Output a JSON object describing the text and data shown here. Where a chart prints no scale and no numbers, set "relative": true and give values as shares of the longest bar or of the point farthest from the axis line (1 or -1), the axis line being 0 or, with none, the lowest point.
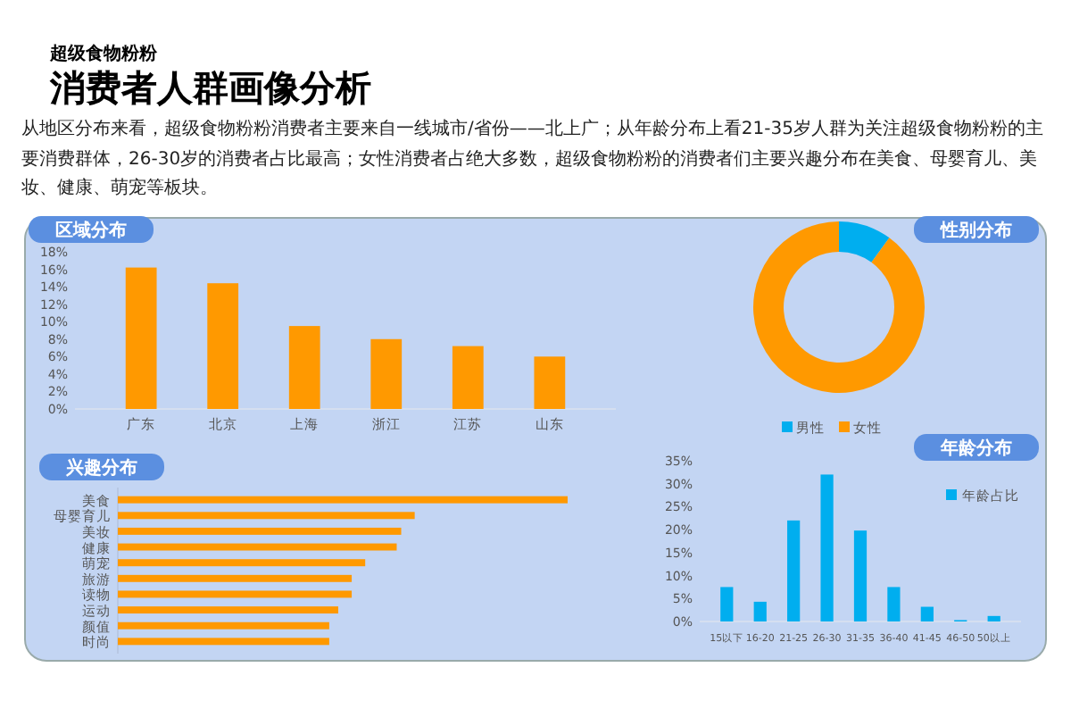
{
  "chart_data": [
    {
      "type": "other",
      "title": "消费者人群画像分析",
      "subtitle": "超级食物粉粉",
      "annotations": [
        "从地区分布来看，超级食物粉粉消费者主要来自一线城市/省份——北上广；从年龄分布上看21-35岁人群为关注超级食物粉粉的主要消费群体，26-30岁的消费者占比最高；女性消费者占绝大多数，超级食物粉粉的消费者们主要兴趣分布在美食、母婴育儿、美妆、健康、萌宠等板块。"
      ]
    },
    {
      "type": "bar",
      "title": "区域分布",
      "categories": [
        "广东",
        "北京",
        "上海",
        "浙江",
        "江苏",
        "山东"
      ],
      "values": [
        16.2,
        14.4,
        9.5,
        8.0,
        7.2,
        6.0
      ],
      "color": "#ff9900",
      "ylim": [
        0,
        18
      ],
      "yticks": [
        {
          "value": 0,
          "label": "0%"
        },
        {
          "value": 2,
          "label": "2%"
        },
        {
          "value": 4,
          "label": "4%"
        },
        {
          "value": 6,
          "label": "6%"
        },
        {
          "value": 8,
          "label": "8%"
        },
        {
          "value": 10,
          "label": "10%"
        },
        {
          "value": 12,
          "label": "12%"
        },
        {
          "value": 14,
          "label": "14%"
        },
        {
          "value": 16,
          "label": "16%"
        },
        {
          "value": 18,
          "label": "18%"
        }
      ]
    },
    {
      "type": "donut",
      "title": "性别分布",
      "categories": [
        "男性",
        "女性"
      ],
      "values": [
        10,
        90
      ],
      "colors": [
        "#00aeef",
        "#ff9900"
      ],
      "legend": "bottom"
    },
    {
      "type": "bar",
      "title": "兴趣分布",
      "orientation": "horizontal",
      "relative": true,
      "categories": [
        "美食",
        "母婴育儿",
        "美妆",
        "健康",
        "萌宠",
        "旅游",
        "读物",
        "运动",
        "颜值",
        "时尚"
      ],
      "values": [
        1,
        0.66,
        0.63,
        0.62,
        0.55,
        0.52,
        0.52,
        0.49,
        0.47,
        0.47
      ],
      "color": "#ff9900"
    },
    {
      "type": "bar",
      "title": "年龄分布",
      "categories": [
        "15以下",
        "16-20",
        "21-25",
        "26-30",
        "31-35",
        "36-40",
        "41-45",
        "46-50",
        "50以上"
      ],
      "series": [
        {
          "name": "年龄占比",
          "color": "#00aeef",
          "values": [
            7.5,
            4.3,
            22,
            32,
            19.8,
            7.5,
            3.2,
            0.3,
            1.2
          ]
        }
      ],
      "legend": "top right",
      "ylim": [
        0,
        35
      ],
      "yticks": [
        {
          "value": 0,
          "label": "0%"
        },
        {
          "value": 5,
          "label": "5%"
        },
        {
          "value": 10,
          "label": "10%"
        },
        {
          "value": 15,
          "label": "15%"
        },
        {
          "value": 20,
          "label": "20%"
        },
        {
          "value": 25,
          "label": "25%"
        },
        {
          "value": 30,
          "label": "30%"
        },
        {
          "value": 35,
          "label": "35%"
        }
      ]
    }
  ]
}
